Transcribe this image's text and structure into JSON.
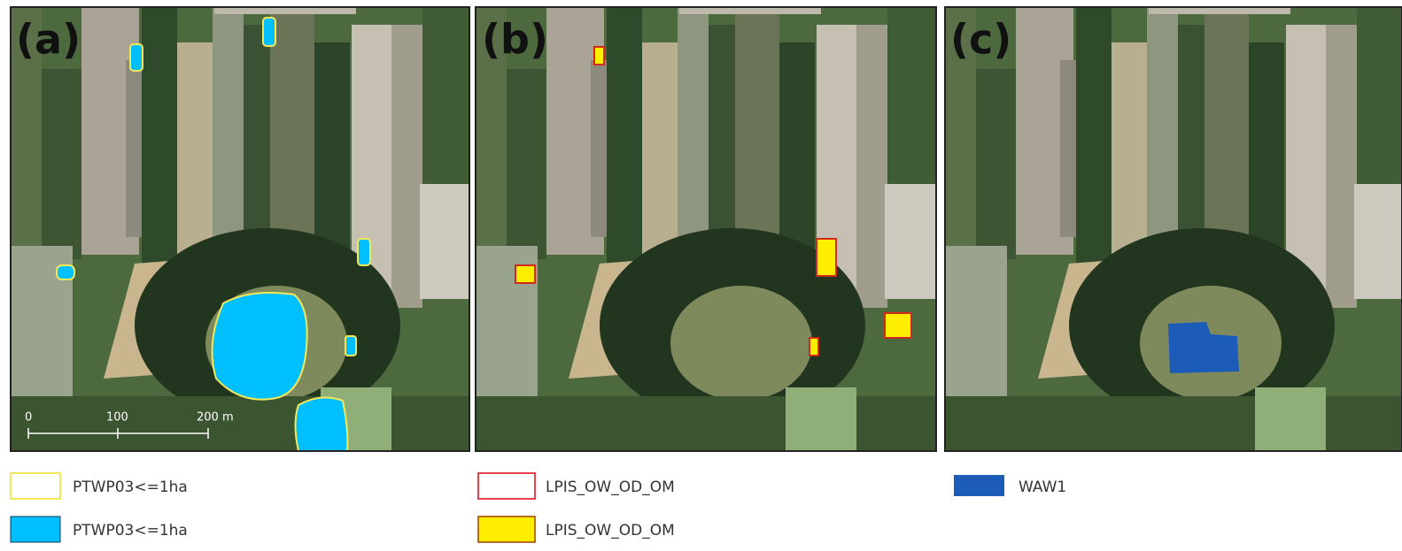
{
  "panels": [
    {
      "label": "(a)",
      "scale_bar": {
        "ticks": [
          "0",
          "100",
          "200 m"
        ]
      }
    },
    {
      "label": "(b)"
    },
    {
      "label": "(c)"
    }
  ],
  "legend": [
    {
      "label": "PTWP03<=1ha"
    },
    {
      "label": "PTWP03<=1ha"
    },
    {
      "label": "LPIS_OW_OD_OM"
    },
    {
      "label": "LPIS_OW_OD_OM"
    },
    {
      "label": "WAW1"
    }
  ]
}
